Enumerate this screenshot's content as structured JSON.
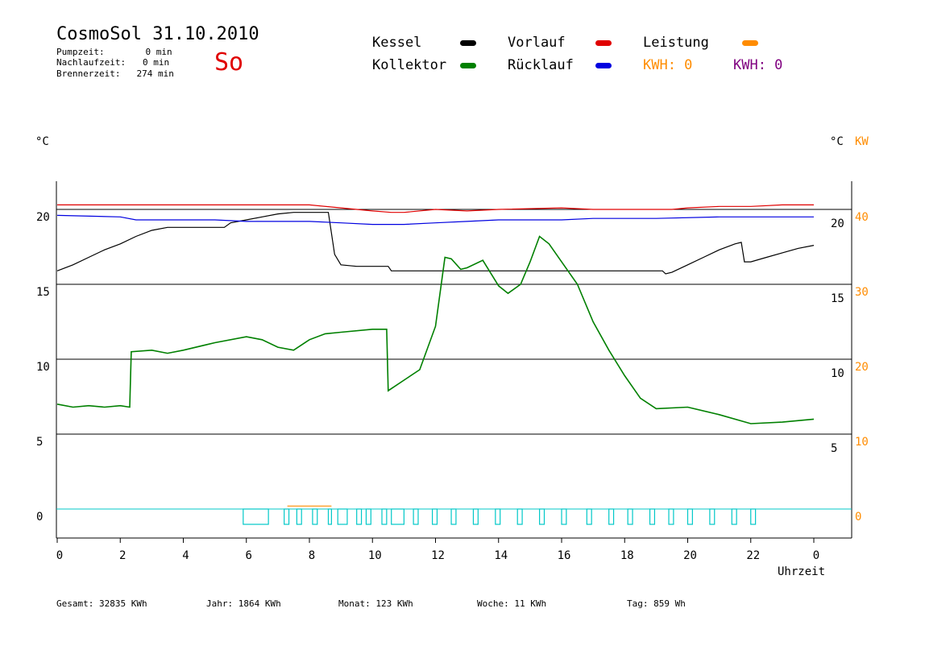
{
  "header": {
    "title": "CosmoSol 31.10.2010",
    "day": "So",
    "stats": [
      {
        "label": "Pumpzeit:",
        "value": "0 min"
      },
      {
        "label": "Nachlaufzeit:",
        "value": "0 min"
      },
      {
        "label": "Brennerzeit:",
        "value": "274 min"
      }
    ]
  },
  "legend": {
    "kessel": "Kessel",
    "kollektor": "Kollektor",
    "vorlauf": "Vorlauf",
    "ruecklauf": "Rücklauf",
    "leistung": "Leistung",
    "kwh1": "KWH: 0",
    "kwh2": "KWH: 0"
  },
  "axes": {
    "left_unit": "°C",
    "right_unit": "°C",
    "right_unit2": "KW",
    "xlabel": "Uhrzeit"
  },
  "colors": {
    "kessel": "#000000",
    "kollektor": "#008000",
    "vorlauf": "#e00000",
    "ruecklauf": "#0000e0",
    "leistung": "#ff8c00",
    "kwh2": "#800080",
    "pump": "#00c8c8"
  },
  "footer": {
    "gesamt": "Gesamt:  32835 KWh",
    "jahr": "Jahr:  1864 KWh",
    "monat": "Monat:   123 KWh",
    "woche": "Woche:    11 KWh",
    "tag": "Tag:   859 Wh"
  },
  "chart_data": {
    "type": "line",
    "x_ticks": [
      "0",
      "2",
      "4",
      "6",
      "8",
      "10",
      "12",
      "14",
      "16",
      "18",
      "20",
      "22",
      "0"
    ],
    "y_left_ticks": [
      "20",
      "15",
      "10",
      "5",
      "0"
    ],
    "y_right_ticks": [
      "20",
      "15",
      "10",
      "5"
    ],
    "y_right2_ticks": [
      "40",
      "30",
      "20",
      "10",
      "0"
    ],
    "xlim": [
      0,
      24
    ],
    "ylim": [
      -2,
      22
    ],
    "series": [
      {
        "name": "Kessel",
        "key": "kessel",
        "points": [
          [
            0,
            15.9
          ],
          [
            0.5,
            16.3
          ],
          [
            1,
            16.8
          ],
          [
            1.5,
            17.3
          ],
          [
            2,
            17.7
          ],
          [
            2.5,
            18.2
          ],
          [
            3,
            18.6
          ],
          [
            3.5,
            18.8
          ],
          [
            4,
            18.8
          ],
          [
            5.3,
            18.8
          ],
          [
            5.5,
            19.1
          ],
          [
            6,
            19.3
          ],
          [
            6.5,
            19.5
          ],
          [
            7,
            19.7
          ],
          [
            7.5,
            19.8
          ],
          [
            8.6,
            19.8
          ],
          [
            8.6,
            19.8
          ],
          [
            8.8,
            17
          ],
          [
            9,
            16.3
          ],
          [
            9.5,
            16.2
          ],
          [
            10.5,
            16.2
          ],
          [
            10.6,
            15.9
          ],
          [
            11,
            15.9
          ],
          [
            19.2,
            15.9
          ],
          [
            19.3,
            15.7
          ],
          [
            19.5,
            15.8
          ],
          [
            20,
            16.3
          ],
          [
            20.5,
            16.8
          ],
          [
            21,
            17.3
          ],
          [
            21.5,
            17.7
          ],
          [
            21.7,
            17.8
          ],
          [
            21.8,
            16.5
          ],
          [
            22,
            16.5
          ],
          [
            22.5,
            16.8
          ],
          [
            23,
            17.1
          ],
          [
            23.5,
            17.4
          ],
          [
            24,
            17.6
          ]
        ]
      },
      {
        "name": "Kollektor",
        "key": "kollektor",
        "points": [
          [
            0,
            7
          ],
          [
            0.5,
            6.8
          ],
          [
            1,
            6.9
          ],
          [
            1.5,
            6.8
          ],
          [
            2,
            6.9
          ],
          [
            2.3,
            6.8
          ],
          [
            2.35,
            10.5
          ],
          [
            3,
            10.6
          ],
          [
            3.5,
            10.4
          ],
          [
            4,
            10.6
          ],
          [
            5,
            11.1
          ],
          [
            6,
            11.5
          ],
          [
            6.5,
            11.3
          ],
          [
            7,
            10.8
          ],
          [
            7.5,
            10.6
          ],
          [
            8,
            11.3
          ],
          [
            8.5,
            11.7
          ],
          [
            9,
            11.8
          ],
          [
            10,
            12
          ],
          [
            10.45,
            12
          ],
          [
            10.5,
            7.9
          ],
          [
            11,
            8.6
          ],
          [
            11.5,
            9.3
          ],
          [
            12,
            12.2
          ],
          [
            12.3,
            16.8
          ],
          [
            12.5,
            16.7
          ],
          [
            12.8,
            16
          ],
          [
            13,
            16.1
          ],
          [
            13.5,
            16.6
          ],
          [
            14,
            14.9
          ],
          [
            14.3,
            14.4
          ],
          [
            14.7,
            15
          ],
          [
            15,
            16.5
          ],
          [
            15.3,
            18.2
          ],
          [
            15.6,
            17.7
          ],
          [
            16,
            16.5
          ],
          [
            16.5,
            15
          ],
          [
            17,
            12.5
          ],
          [
            17.5,
            10.6
          ],
          [
            18,
            8.9
          ],
          [
            18.5,
            7.4
          ],
          [
            19,
            6.7
          ],
          [
            20,
            6.8
          ],
          [
            21,
            6.3
          ],
          [
            22,
            5.7
          ],
          [
            23,
            5.8
          ],
          [
            24,
            6
          ]
        ]
      },
      {
        "name": "Vorlauf",
        "key": "vorlauf",
        "points": [
          [
            0,
            20.3
          ],
          [
            8,
            20.3
          ],
          [
            9,
            20.1
          ],
          [
            10,
            19.9
          ],
          [
            10.6,
            19.8
          ],
          [
            11,
            19.8
          ],
          [
            12,
            20
          ],
          [
            13,
            19.9
          ],
          [
            14,
            20
          ],
          [
            16,
            20.1
          ],
          [
            17,
            20
          ],
          [
            18,
            20
          ],
          [
            19.5,
            20
          ],
          [
            20,
            20.1
          ],
          [
            21,
            20.2
          ],
          [
            22,
            20.2
          ],
          [
            23,
            20.3
          ],
          [
            24,
            20.3
          ]
        ]
      },
      {
        "name": "Rücklauf",
        "key": "ruecklauf",
        "points": [
          [
            0,
            19.6
          ],
          [
            2,
            19.5
          ],
          [
            2.5,
            19.3
          ],
          [
            3,
            19.3
          ],
          [
            5,
            19.3
          ],
          [
            6,
            19.2
          ],
          [
            8,
            19.2
          ],
          [
            9,
            19.1
          ],
          [
            10,
            19
          ],
          [
            11,
            19
          ],
          [
            12,
            19.1
          ],
          [
            13,
            19.2
          ],
          [
            14,
            19.3
          ],
          [
            16,
            19.3
          ],
          [
            17,
            19.4
          ],
          [
            19,
            19.4
          ],
          [
            21,
            19.5
          ],
          [
            22,
            19.5
          ],
          [
            24,
            19.5
          ]
        ]
      },
      {
        "name": "Leistung",
        "key": "leistung",
        "points": [
          [
            7.3,
            0.2
          ],
          [
            8.7,
            0.2
          ]
        ]
      }
    ],
    "pump_pulses": [
      [
        5.9,
        6.7
      ],
      [
        7.2,
        7.35
      ],
      [
        7.6,
        7.75
      ],
      [
        8.1,
        8.25
      ],
      [
        8.6,
        8.7
      ],
      [
        8.9,
        9.2
      ],
      [
        9.5,
        9.65
      ],
      [
        9.8,
        9.95
      ],
      [
        10.3,
        10.45
      ],
      [
        10.6,
        11.0
      ],
      [
        11.3,
        11.45
      ],
      [
        11.9,
        12.05
      ],
      [
        12.5,
        12.65
      ],
      [
        13.2,
        13.35
      ],
      [
        13.9,
        14.05
      ],
      [
        14.6,
        14.75
      ],
      [
        15.3,
        15.45
      ],
      [
        16.0,
        16.15
      ],
      [
        16.8,
        16.95
      ],
      [
        17.5,
        17.65
      ],
      [
        18.1,
        18.25
      ],
      [
        18.8,
        18.95
      ],
      [
        19.4,
        19.55
      ],
      [
        20.0,
        20.15
      ],
      [
        20.7,
        20.85
      ],
      [
        21.4,
        21.55
      ],
      [
        22.0,
        22.15
      ]
    ],
    "grid": true,
    "legend_position": "top"
  }
}
